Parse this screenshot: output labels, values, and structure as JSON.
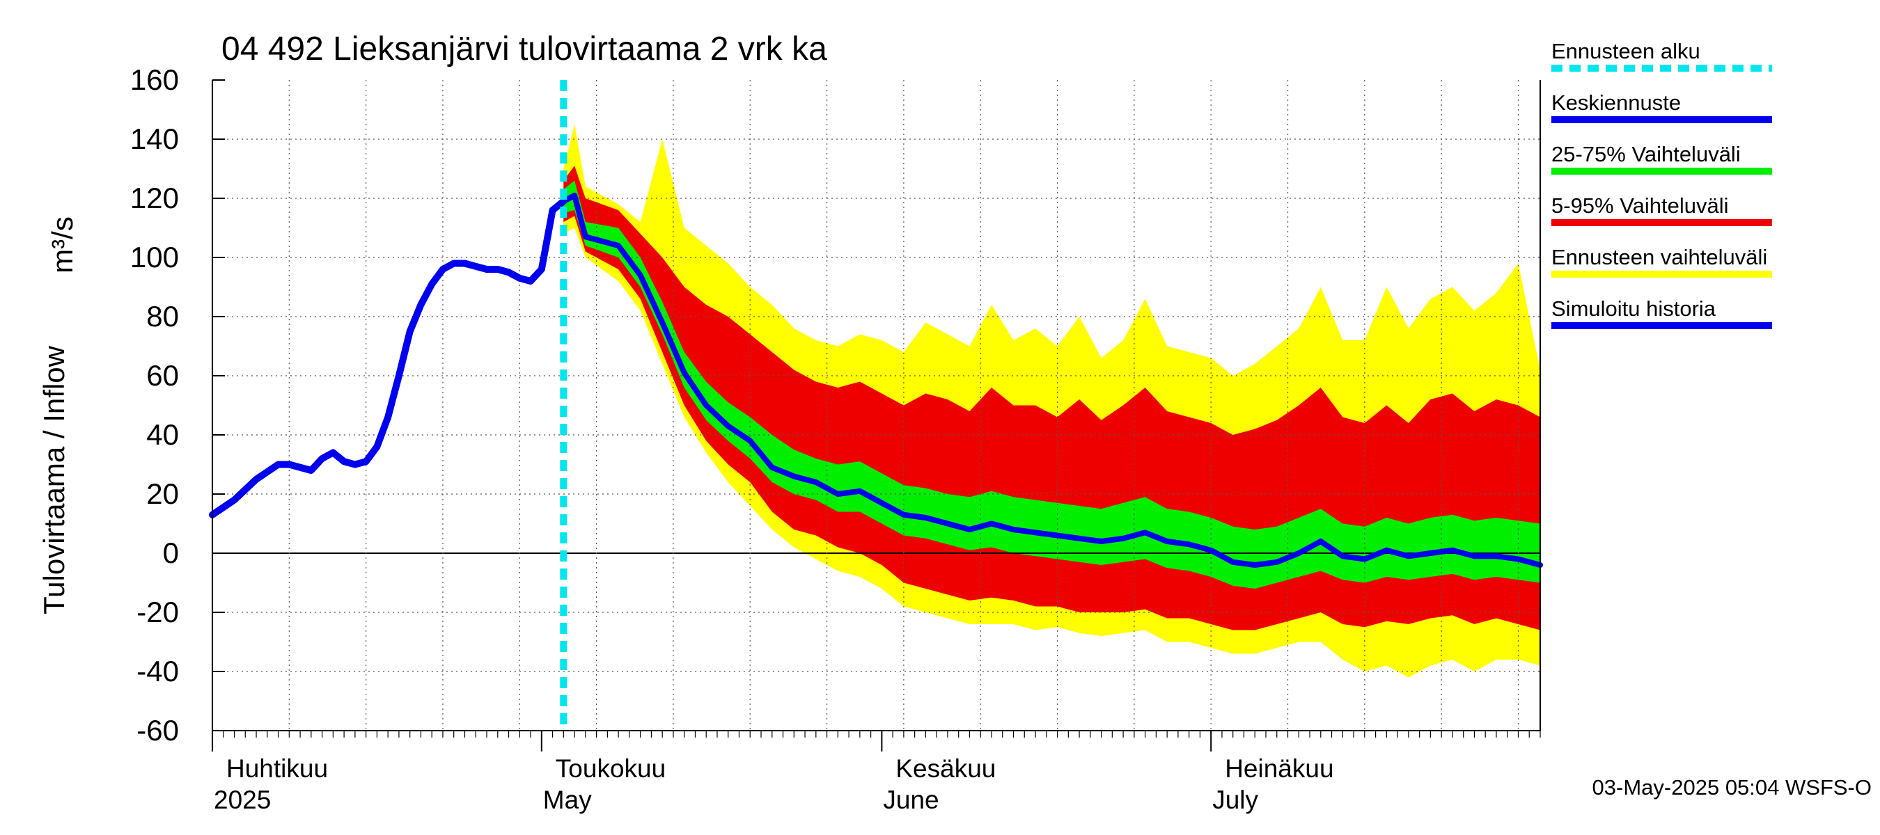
{
  "chart_data": {
    "type": "area",
    "title": "04 492 Lieksanjärvi tulovirtaama 2 vrk ka",
    "ylabel": "Tulovirtaama / Inflow",
    "yunit": "m³/s",
    "ylim": [
      -60,
      160
    ],
    "yticks": [
      -60,
      -40,
      -20,
      0,
      20,
      40,
      60,
      80,
      100,
      120,
      140,
      160
    ],
    "xlim": [
      "2025-04-01",
      "2025-07-31"
    ],
    "grid": true,
    "legend_position": "right",
    "months": [
      {
        "date": "2025-04-01",
        "line1": "Huhtikuu",
        "line2": "2025"
      },
      {
        "date": "2025-05-01",
        "line1": "Toukokuu",
        "line2": "May"
      },
      {
        "date": "2025-06-01",
        "line1": "Kesäkuu",
        "line2": "June"
      },
      {
        "date": "2025-07-01",
        "line1": "Heinäkuu",
        "line2": "July"
      }
    ],
    "forecast_start": "2025-05-03",
    "colors": {
      "forecast_start": "#00e5ee",
      "mean": "#0000ee",
      "band_25_75": "#00ee00",
      "band_5_95": "#ee0000",
      "band_full": "#ffff00",
      "history": "#0000ee"
    },
    "legend": [
      {
        "key": "forecast_start",
        "label": "Ennusteen alku",
        "style": "dashed"
      },
      {
        "key": "mean",
        "label": "Keskiennuste",
        "style": "solid"
      },
      {
        "key": "band_25_75",
        "label": "25-75% Vaihteluväli",
        "style": "solid"
      },
      {
        "key": "band_5_95",
        "label": "5-95% Vaihteluväli",
        "style": "solid"
      },
      {
        "key": "band_full",
        "label": "Ennusteen vaihteluväli",
        "style": "solid"
      },
      {
        "key": "history",
        "label": "Simuloitu historia",
        "style": "solid"
      }
    ],
    "history": {
      "x": [
        "2025-04-01",
        "2025-04-03",
        "2025-04-05",
        "2025-04-07",
        "2025-04-08",
        "2025-04-10",
        "2025-04-11",
        "2025-04-12",
        "2025-04-13",
        "2025-04-14",
        "2025-04-15",
        "2025-04-16",
        "2025-04-17",
        "2025-04-18",
        "2025-04-19",
        "2025-04-20",
        "2025-04-21",
        "2025-04-22",
        "2025-04-23",
        "2025-04-24",
        "2025-04-25",
        "2025-04-26",
        "2025-04-27",
        "2025-04-28",
        "2025-04-29",
        "2025-04-30",
        "2025-05-01",
        "2025-05-02",
        "2025-05-03"
      ],
      "y": [
        13,
        18,
        25,
        30,
        30,
        28,
        32,
        34,
        31,
        30,
        31,
        36,
        46,
        60,
        75,
        84,
        91,
        96,
        98,
        98,
        97,
        96,
        96,
        95,
        93,
        92,
        96,
        116,
        119
      ]
    },
    "forecast": {
      "x": [
        "2025-05-03",
        "2025-05-04",
        "2025-05-05",
        "2025-05-08",
        "2025-05-10",
        "2025-05-12",
        "2025-05-14",
        "2025-05-16",
        "2025-05-18",
        "2025-05-20",
        "2025-05-22",
        "2025-05-24",
        "2025-05-26",
        "2025-05-28",
        "2025-05-30",
        "2025-06-01",
        "2025-06-03",
        "2025-06-05",
        "2025-06-07",
        "2025-06-09",
        "2025-06-11",
        "2025-06-13",
        "2025-06-15",
        "2025-06-17",
        "2025-06-19",
        "2025-06-21",
        "2025-06-23",
        "2025-06-25",
        "2025-06-27",
        "2025-06-29",
        "2025-07-01",
        "2025-07-03",
        "2025-07-05",
        "2025-07-07",
        "2025-07-09",
        "2025-07-11",
        "2025-07-13",
        "2025-07-15",
        "2025-07-17",
        "2025-07-19",
        "2025-07-21",
        "2025-07-23",
        "2025-07-25",
        "2025-07-27",
        "2025-07-29",
        "2025-07-31"
      ],
      "mean": [
        119,
        121,
        107,
        104,
        94,
        78,
        61,
        50,
        43,
        38,
        29,
        26,
        24,
        20,
        21,
        17,
        13,
        12,
        10,
        8,
        10,
        8,
        7,
        6,
        5,
        4,
        5,
        7,
        4,
        3,
        1,
        -3,
        -4,
        -3,
        0,
        4,
        -1,
        -2,
        1,
        -1,
        0,
        1,
        -1,
        -1,
        -2,
        -4
      ],
      "p25": [
        115,
        116,
        104,
        100,
        90,
        74,
        56,
        45,
        38,
        32,
        24,
        20,
        18,
        14,
        14,
        10,
        6,
        5,
        3,
        1,
        2,
        0,
        -1,
        -2,
        -3,
        -4,
        -3,
        -2,
        -5,
        -6,
        -8,
        -11,
        -12,
        -10,
        -8,
        -6,
        -9,
        -10,
        -8,
        -9,
        -8,
        -7,
        -9,
        -8,
        -9,
        -10
      ],
      "p75": [
        123,
        126,
        112,
        110,
        100,
        85,
        68,
        58,
        51,
        46,
        40,
        35,
        32,
        30,
        31,
        27,
        23,
        22,
        20,
        19,
        21,
        19,
        18,
        17,
        16,
        15,
        17,
        19,
        15,
        14,
        12,
        9,
        8,
        9,
        12,
        15,
        10,
        9,
        12,
        10,
        12,
        13,
        11,
        12,
        11,
        10
      ],
      "p5": [
        112,
        114,
        102,
        96,
        86,
        68,
        50,
        38,
        30,
        24,
        14,
        8,
        6,
        2,
        0,
        -4,
        -10,
        -12,
        -14,
        -16,
        -15,
        -16,
        -18,
        -18,
        -20,
        -20,
        -20,
        -19,
        -22,
        -22,
        -24,
        -26,
        -26,
        -24,
        -22,
        -20,
        -24,
        -25,
        -23,
        -24,
        -22,
        -21,
        -24,
        -22,
        -24,
        -26
      ],
      "p95": [
        126,
        131,
        120,
        116,
        108,
        100,
        90,
        84,
        80,
        74,
        68,
        62,
        58,
        56,
        58,
        54,
        50,
        54,
        52,
        48,
        56,
        50,
        50,
        46,
        52,
        45,
        50,
        56,
        48,
        46,
        44,
        40,
        42,
        45,
        50,
        56,
        46,
        44,
        50,
        44,
        52,
        54,
        48,
        52,
        50,
        46
      ],
      "min": [
        108,
        110,
        100,
        92,
        82,
        64,
        46,
        34,
        24,
        16,
        8,
        2,
        -2,
        -6,
        -8,
        -12,
        -18,
        -20,
        -22,
        -24,
        -24,
        -24,
        -26,
        -25,
        -27,
        -28,
        -27,
        -26,
        -30,
        -30,
        -32,
        -34,
        -34,
        -32,
        -30,
        -30,
        -36,
        -40,
        -38,
        -42,
        -38,
        -36,
        -40,
        -36,
        -36,
        -38
      ],
      "max": [
        130,
        145,
        124,
        118,
        112,
        140,
        110,
        104,
        98,
        90,
        84,
        76,
        72,
        70,
        74,
        72,
        68,
        78,
        74,
        70,
        84,
        72,
        76,
        70,
        80,
        66,
        72,
        86,
        70,
        68,
        66,
        60,
        64,
        70,
        76,
        90,
        72,
        72,
        90,
        76,
        86,
        90,
        82,
        88,
        98,
        62
      ]
    }
  },
  "footer": "03-May-2025 05:04 WSFS-O"
}
